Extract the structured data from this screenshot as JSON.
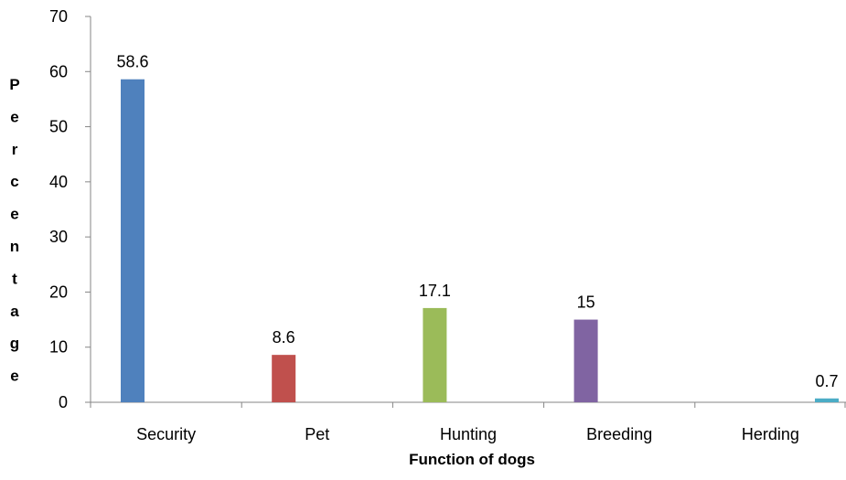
{
  "chart_data": {
    "type": "bar",
    "title": "",
    "xlabel": "Function of dogs",
    "ylabel": "Percentage",
    "categories": [
      "Security",
      "Pet",
      "Hunting",
      "Breeding",
      "Herding"
    ],
    "values": [
      58.6,
      8.6,
      17.1,
      15,
      0.7
    ],
    "data_labels": [
      "58.6",
      "8.6",
      "17.1",
      "15",
      "0.7"
    ],
    "colors": [
      "#4F81BD",
      "#C0504D",
      "#9BBB59",
      "#8064A2",
      "#4BACC6"
    ],
    "ylim": [
      0,
      70
    ],
    "yticks": [
      0,
      10,
      20,
      30,
      40,
      50,
      60,
      70
    ],
    "grid": false,
    "legend": "none"
  }
}
